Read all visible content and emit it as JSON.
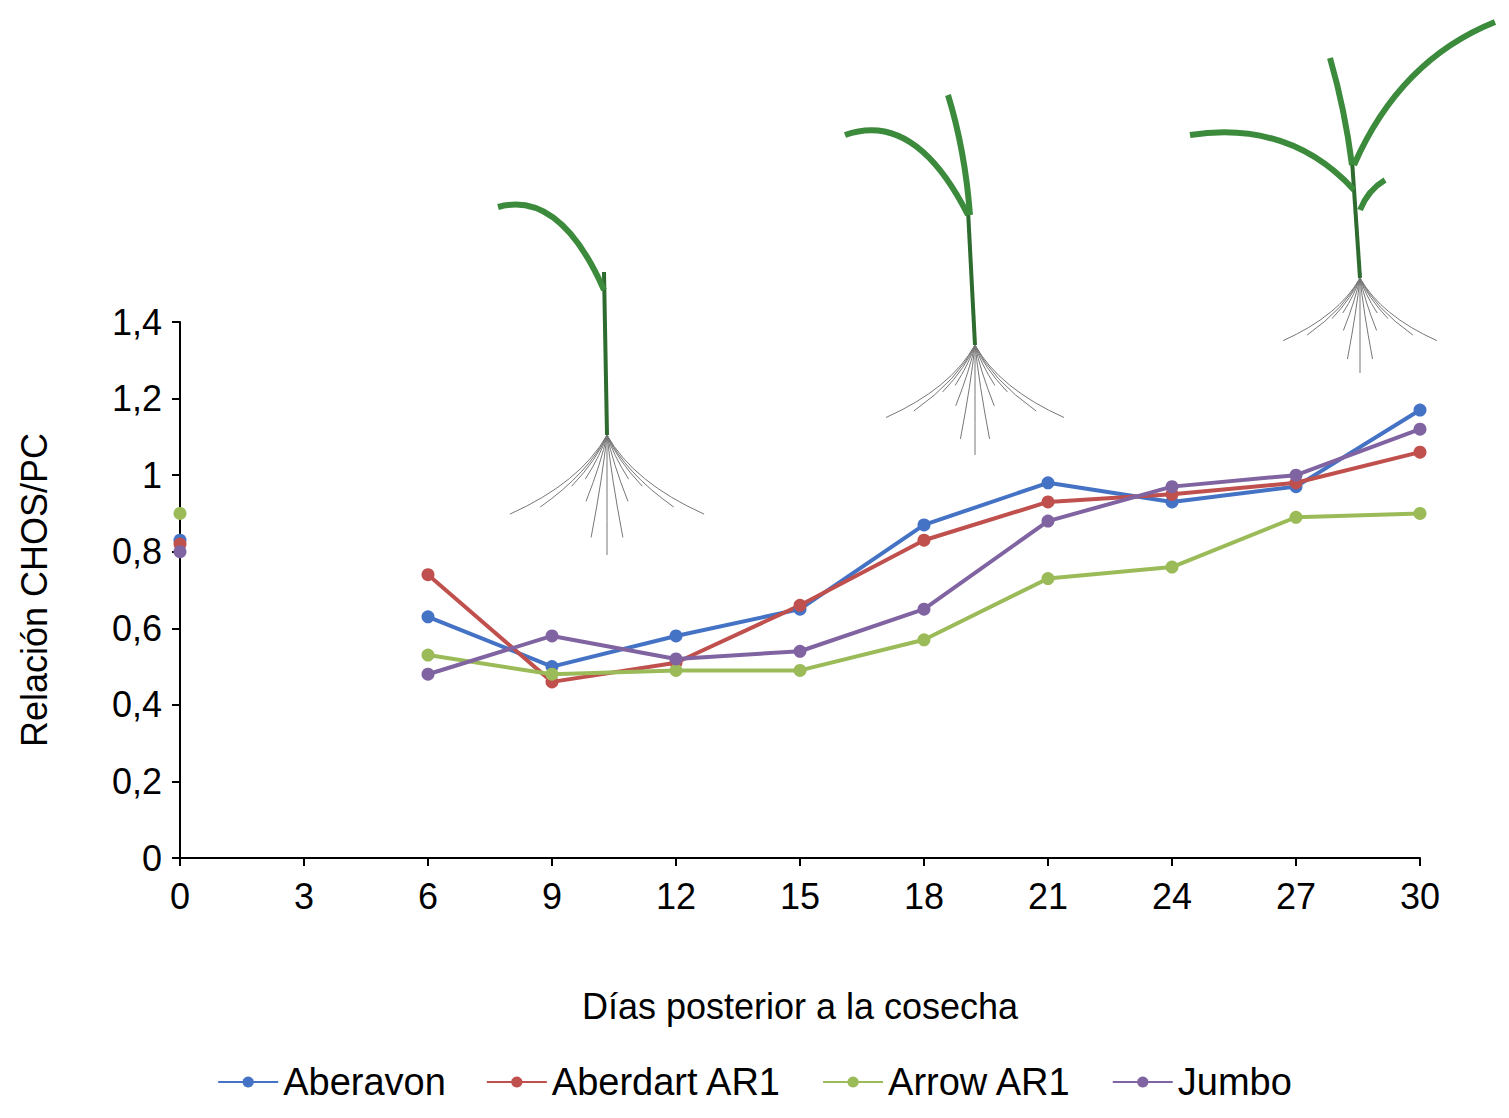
{
  "chart_data": {
    "type": "line",
    "x_label": "Días posterior a la cosecha",
    "y_label": "Relación CHOS/PC",
    "x": [
      0,
      3,
      6,
      9,
      12,
      15,
      18,
      21,
      24,
      27,
      30
    ],
    "series": [
      {
        "name": "Aberavon",
        "color": "#4472c4",
        "values": [
          0.83,
          null,
          0.63,
          0.5,
          0.58,
          0.65,
          0.87,
          0.98,
          0.93,
          0.97,
          1.17
        ]
      },
      {
        "name": "Aberdart AR1",
        "color": "#c0504d",
        "values": [
          0.82,
          null,
          0.74,
          0.46,
          0.51,
          0.66,
          0.83,
          0.93,
          0.95,
          0.98,
          1.06
        ]
      },
      {
        "name": "Arrow AR1",
        "color": "#9bbb59",
        "values": [
          0.9,
          null,
          0.53,
          0.48,
          0.49,
          0.49,
          0.57,
          0.73,
          0.76,
          0.89,
          0.9
        ]
      },
      {
        "name": "Jumbo",
        "color": "#8064a2",
        "values": [
          0.8,
          null,
          0.48,
          0.58,
          0.52,
          0.54,
          0.65,
          0.88,
          0.97,
          1.0,
          1.12
        ]
      }
    ],
    "xlim": [
      0,
      30
    ],
    "xticks": [
      0,
      3,
      6,
      9,
      12,
      15,
      18,
      21,
      24,
      27,
      30
    ],
    "ylim": [
      0,
      1.4
    ],
    "yticks": [
      0,
      {
        "value": 0.2,
        "label": "0,2"
      },
      {
        "value": 0.4,
        "label": "0,4"
      },
      {
        "value": 0.6,
        "label": "0,6"
      },
      {
        "value": 0.8,
        "label": "0,8"
      },
      1,
      {
        "value": 1.2,
        "label": "1,2"
      },
      {
        "value": 1.4,
        "label": "1,4"
      }
    ],
    "grid": false,
    "legend": "bottom",
    "marker": "circle"
  }
}
